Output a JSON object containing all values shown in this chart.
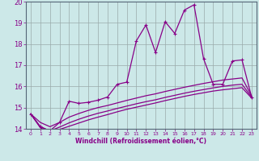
{
  "xlabel": "Windchill (Refroidissement éolien,°C)",
  "x_values": [
    0,
    1,
    2,
    3,
    4,
    5,
    6,
    7,
    8,
    9,
    10,
    11,
    12,
    13,
    14,
    15,
    16,
    17,
    18,
    19,
    20,
    21,
    22,
    23
  ],
  "main_line": [
    14.7,
    14.1,
    13.9,
    14.3,
    15.3,
    15.2,
    15.25,
    15.35,
    15.5,
    16.1,
    16.2,
    18.15,
    18.9,
    17.6,
    19.05,
    18.5,
    19.6,
    19.85,
    17.3,
    16.1,
    16.1,
    17.2,
    17.25,
    15.5
  ],
  "line1": [
    14.7,
    14.3,
    14.1,
    14.3,
    14.55,
    14.72,
    14.87,
    15.0,
    15.1,
    15.22,
    15.34,
    15.45,
    15.56,
    15.65,
    15.76,
    15.86,
    15.96,
    16.05,
    16.14,
    16.22,
    16.3,
    16.35,
    16.4,
    15.55
  ],
  "line2": [
    14.7,
    14.1,
    13.9,
    14.08,
    14.28,
    14.45,
    14.6,
    14.73,
    14.84,
    14.96,
    15.07,
    15.18,
    15.28,
    15.37,
    15.48,
    15.58,
    15.68,
    15.77,
    15.85,
    15.93,
    16.0,
    16.06,
    16.1,
    15.5
  ],
  "line3": [
    14.7,
    14.05,
    13.82,
    13.97,
    14.12,
    14.27,
    14.42,
    14.55,
    14.67,
    14.8,
    14.92,
    15.02,
    15.12,
    15.22,
    15.33,
    15.43,
    15.53,
    15.62,
    15.7,
    15.78,
    15.84,
    15.89,
    15.94,
    15.45
  ],
  "color": "#880088",
  "bg_color": "#cce8e8",
  "grid_color": "#99aaaa",
  "ylim": [
    14,
    20
  ],
  "yticks": [
    14,
    15,
    16,
    17,
    18,
    19,
    20
  ],
  "xticks": [
    0,
    1,
    2,
    3,
    4,
    5,
    6,
    7,
    8,
    9,
    10,
    11,
    12,
    13,
    14,
    15,
    16,
    17,
    18,
    19,
    20,
    21,
    22,
    23
  ]
}
